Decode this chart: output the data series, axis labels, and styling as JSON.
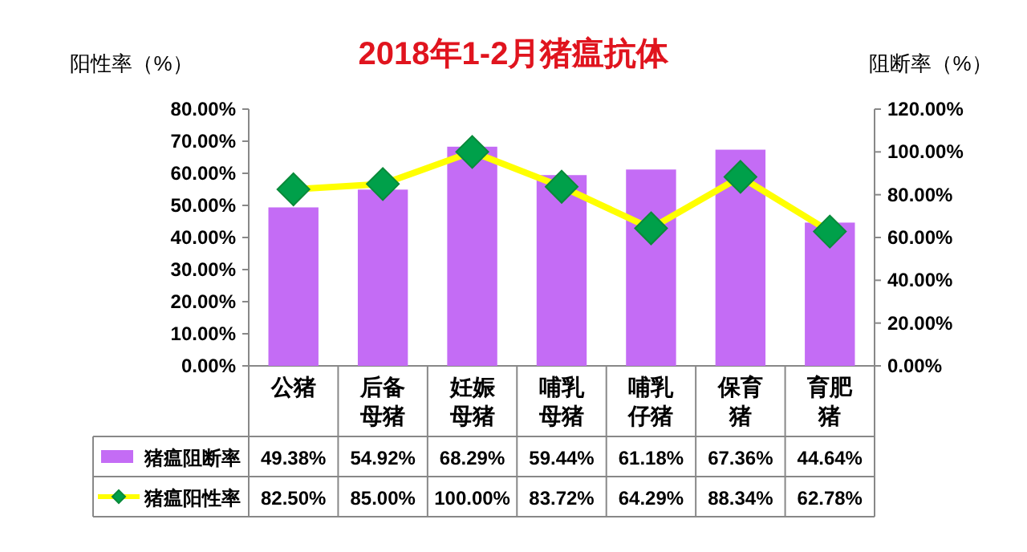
{
  "chart_data": {
    "type": "bar",
    "title": "2018年1-2月猪瘟抗体",
    "ylabel": "阳性率（%）",
    "y2label": "阻断率（%）",
    "categories": [
      "公猪",
      "后备母猪",
      "妊娠母猪",
      "哺乳母猪",
      "哺乳仔猪",
      "保育猪",
      "育肥猪"
    ],
    "series": [
      {
        "name": "猪瘟阻断率",
        "axis": "y",
        "color": "#c46cf5",
        "values": [
          49.38,
          54.92,
          68.29,
          59.44,
          61.18,
          67.36,
          44.64
        ],
        "value_labels": [
          "49.38%",
          "54.92%",
          "68.29%",
          "59.44%",
          "61.18%",
          "67.36%",
          "44.64%"
        ]
      },
      {
        "name": "猪瘟阳性率",
        "type": "line",
        "axis": "y2",
        "color": "#ffff00",
        "values": [
          82.5,
          85.0,
          100.0,
          83.72,
          64.29,
          88.34,
          62.78
        ],
        "value_labels": [
          "82.50%",
          "85.00%",
          "100.00%",
          "83.72%",
          "64.29%",
          "88.34%",
          "62.78%"
        ]
      }
    ],
    "marker": "diamond",
    "ylim": [
      0,
      80
    ],
    "yticks": [
      {
        "value": 0,
        "label": "0.00%"
      },
      {
        "value": 10,
        "label": "10.00%"
      },
      {
        "value": 20,
        "label": "20.00%"
      },
      {
        "value": 30,
        "label": "30.00%"
      },
      {
        "value": 40,
        "label": "40.00%"
      },
      {
        "value": 50,
        "label": "50.00%"
      },
      {
        "value": 60,
        "label": "60.00%"
      },
      {
        "value": 70,
        "label": "70.00%"
      },
      {
        "value": 80,
        "label": "80.00%"
      }
    ],
    "y2lim": [
      0,
      120
    ],
    "y2ticks": [
      {
        "value": 0,
        "label": "0.00%"
      },
      {
        "value": 20,
        "label": "20.00%"
      },
      {
        "value": 40,
        "label": "40.00%"
      },
      {
        "value": 60,
        "label": "60.00%"
      },
      {
        "value": 80,
        "label": "80.00%"
      },
      {
        "value": 100,
        "label": "100.00%"
      },
      {
        "value": 120,
        "label": "120.00%"
      }
    ],
    "legend": "bottom"
  }
}
